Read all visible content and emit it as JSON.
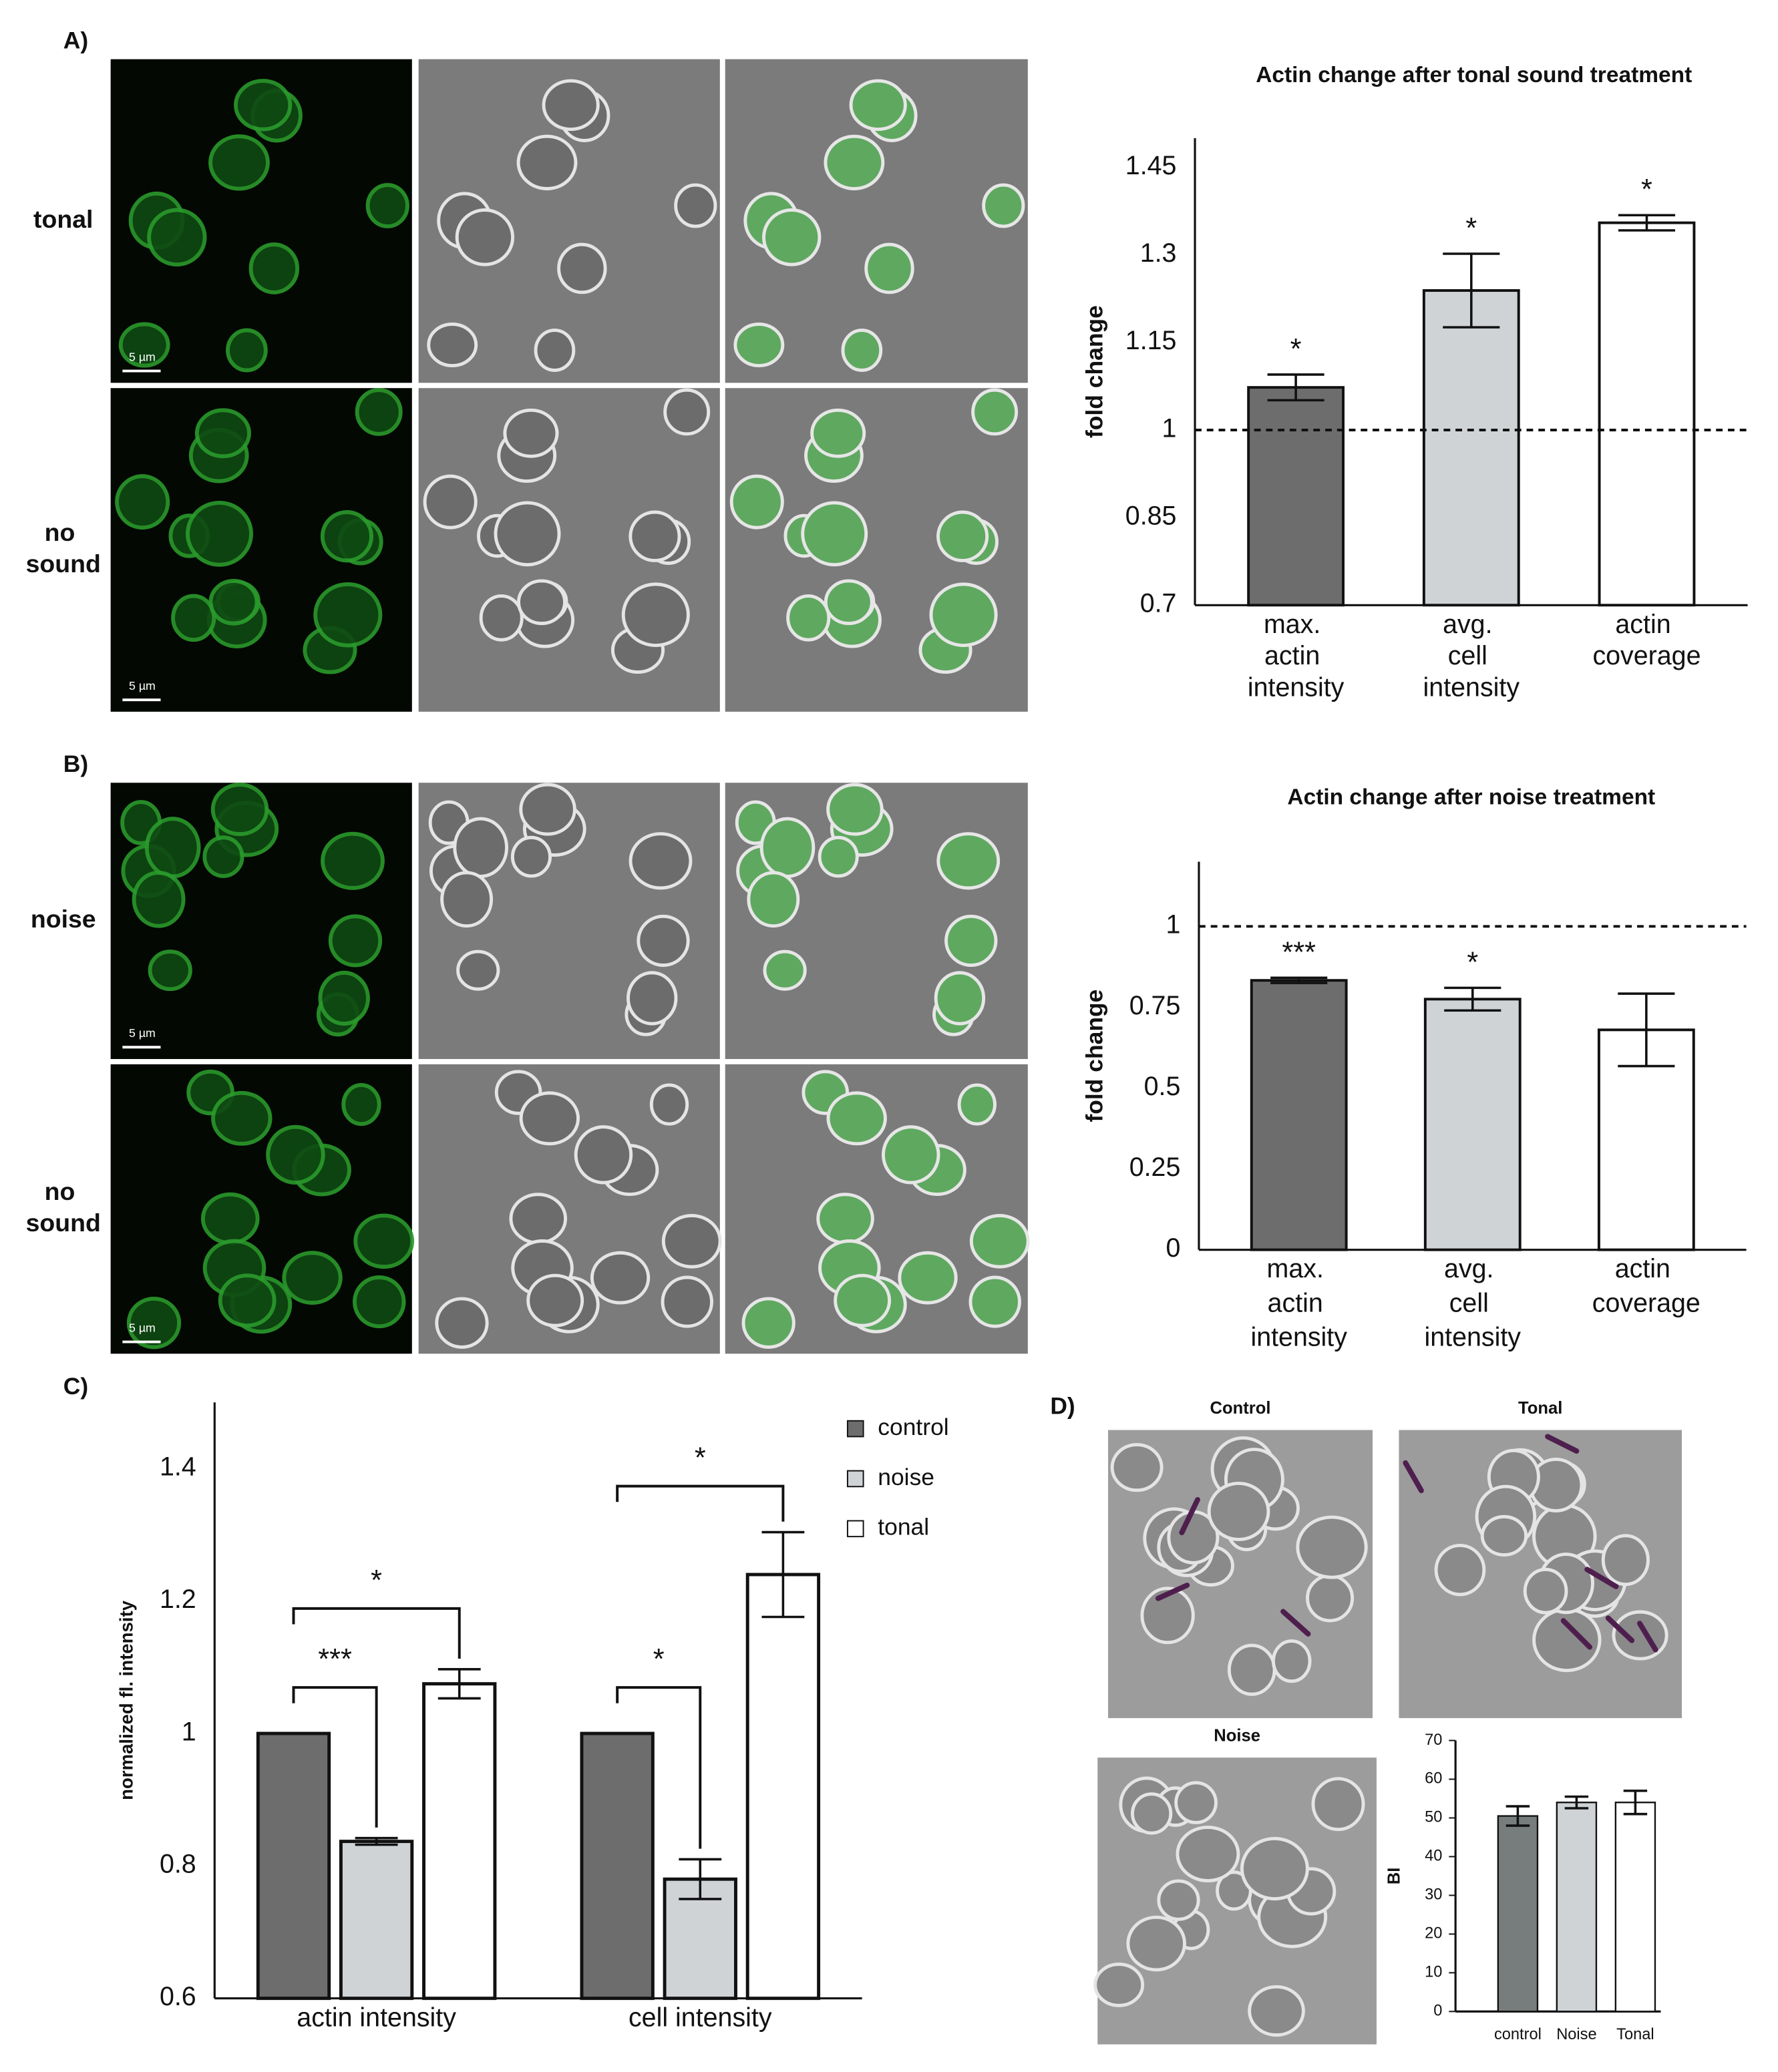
{
  "panel_labels": [
    "A)",
    "B)",
    "C)",
    "D)"
  ],
  "row_labels": [
    "tonal",
    "no sound",
    "noise",
    "no sound"
  ],
  "scale_bars": [
    "5 µm",
    "5 µm",
    "5 µm",
    "5 µm"
  ],
  "image_titles": [
    "Control",
    "Tonal",
    "Noise"
  ],
  "chart_data": [
    {
      "type": "bar",
      "title": "Actin change after tonal sound treatment",
      "ylabel": "fold change",
      "categories": [
        "max. actin intensity",
        "avg. cell intensity",
        "actin coverage"
      ],
      "values": [
        1.073,
        1.239,
        1.355
      ],
      "errors": [
        0.022,
        0.063,
        0.013
      ],
      "annotations": [
        "*",
        "*",
        "*"
      ],
      "colors": [
        "#6d6d6d",
        "#d0d3d6",
        "#ffffff"
      ],
      "reference_line": 1,
      "ylim": [
        0.7,
        1.5
      ],
      "yticks": [
        0.7,
        0.85,
        1,
        1.15,
        1.3,
        1.45
      ]
    },
    {
      "type": "bar",
      "title": "Actin change after noise treatment",
      "ylabel": "fold change",
      "categories": [
        "max. actin intensity",
        "avg. cell intensity",
        "actin coverage"
      ],
      "values": [
        0.833,
        0.775,
        0.68
      ],
      "errors": [
        0.008,
        0.035,
        0.112
      ],
      "annotations": [
        "***",
        "*",
        null
      ],
      "colors": [
        "#6d6d6d",
        "#d0d3d6",
        "#ffffff"
      ],
      "reference_line": 1,
      "ylim": [
        0,
        1.2
      ],
      "yticks": [
        0,
        0.25,
        0.5,
        0.75,
        1
      ]
    },
    {
      "type": "grouped_bar",
      "ylabel": "normalized fl. intensity",
      "categories": [
        "actin intensity",
        "cell intensity"
      ],
      "series": [
        {
          "name": "control",
          "color": "#6d6d6d",
          "values": [
            1,
            1
          ]
        },
        {
          "name": "noise",
          "color": "#d0d3d6",
          "values": [
            0.837,
            0.78
          ],
          "errors": [
            0.005,
            0.03
          ],
          "annotations": [
            "***",
            "*"
          ]
        },
        {
          "name": "tonal",
          "color": "#ffffff",
          "values": [
            1.075,
            1.24
          ],
          "errors": [
            0.022,
            0.064
          ],
          "annotations": [
            "*",
            "*"
          ]
        }
      ],
      "legend": "upper right",
      "ylim": [
        0.6,
        1.5
      ],
      "yticks": [
        0.6,
        0.8,
        1,
        1.2,
        1.4
      ]
    },
    {
      "type": "bar",
      "ylabel": "BI",
      "categories": [
        "control",
        "Noise",
        "Tonal"
      ],
      "values": [
        50.5,
        54,
        54
      ],
      "errors": [
        2.5,
        1.5,
        3
      ],
      "colors": [
        "#777d7d",
        "#d0d3d6",
        "#ffffff"
      ],
      "ylim": [
        0,
        70
      ],
      "yticks": [
        0,
        10,
        20,
        30,
        40,
        50,
        60,
        70
      ]
    }
  ]
}
